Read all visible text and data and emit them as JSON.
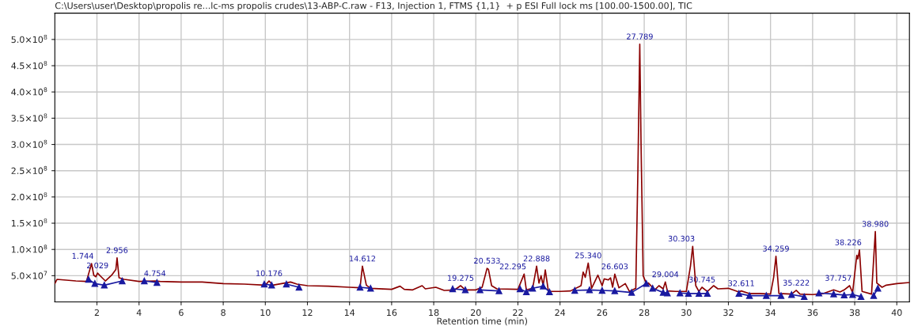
{
  "chart_data": {
    "type": "line",
    "title": "C:\\Users\\user\\Desktop\\propolis re...lc-ms propolis crudes\\13-ABP-C.raw - F13, Injection 1, FTMS {1,1}  + p ESI Full lock ms [100.00-1500.00], TIC",
    "xlabel": "Retention time (min)",
    "xlim": [
      0,
      40.6
    ],
    "xticks": [
      2,
      4,
      6,
      8,
      10,
      12,
      14,
      16,
      18,
      20,
      22,
      24,
      26,
      28,
      30,
      32,
      34,
      36,
      38,
      40
    ],
    "ylim": [
      0,
      550000000
    ],
    "yticks": [
      {
        "value": 50000000,
        "label": "5.0×10$^{7}$"
      },
      {
        "value": 100000000,
        "label": "1.0×10$^{8}$"
      },
      {
        "value": 150000000,
        "label": "1.5×10$^{8}$"
      },
      {
        "value": 200000000,
        "label": "2.0×10$^{8}$"
      },
      {
        "value": 250000000,
        "label": "2.5×10$^{8}$"
      },
      {
        "value": 300000000,
        "label": "3.0×10$^{8}$"
      },
      {
        "value": 350000000,
        "label": "3.5×10$^{8}$"
      },
      {
        "value": 400000000,
        "label": "4.0×10$^{8}$"
      },
      {
        "value": 450000000,
        "label": "4.5×10$^{8}$"
      },
      {
        "value": 500000000,
        "label": "5.0×10$^{8}$"
      }
    ],
    "grid": true,
    "series": [
      {
        "color": "#8b0000",
        "marker": "none",
        "x": [
          0.0,
          0.1,
          1.0,
          1.5,
          1.744,
          1.85,
          1.95,
          2.029,
          2.2,
          2.4,
          2.7,
          2.9,
          2.956,
          3.05,
          3.3,
          4,
          4.754,
          5,
          6,
          7,
          8,
          9,
          10,
          10.176,
          10.35,
          11.2,
          11.5,
          12,
          13,
          14,
          14.5,
          14.612,
          14.8,
          15,
          16,
          16.4,
          16.6,
          17,
          17.45,
          17.6,
          18.1,
          18.5,
          19,
          19.275,
          19.5,
          20,
          20.3,
          20.533,
          20.6,
          20.75,
          21,
          22,
          22.295,
          22.4,
          22.7,
          22.888,
          23.0,
          23.1,
          23.2,
          23.3,
          23.45,
          24,
          24.5,
          25.0,
          25.1,
          25.2,
          25.34,
          25.5,
          25.8,
          26.0,
          26.1,
          26.3,
          26.4,
          26.5,
          26.603,
          26.8,
          27.1,
          27.3,
          27.6,
          27.7,
          27.789,
          27.85,
          27.95,
          28.1,
          28.2,
          28.5,
          28.7,
          28.9,
          29.004,
          29.1,
          29.5,
          30.0,
          30.2,
          30.303,
          30.45,
          30.6,
          30.745,
          31.0,
          31.3,
          31.5,
          32,
          32.5,
          32.611,
          33,
          33.5,
          34.0,
          34.15,
          34.259,
          34.4,
          35.0,
          35.222,
          35.4,
          36,
          36.5,
          37.0,
          37.3,
          37.5,
          37.757,
          37.9,
          38.1,
          38.15,
          38.226,
          38.35,
          38.8,
          38.98,
          39.05,
          39.3,
          39.5,
          40,
          40.6
        ],
        "values": [
          35000000,
          43000000,
          40000000,
          39000000,
          73000000,
          51000000,
          48000000,
          55000000,
          48000000,
          40000000,
          51000000,
          62000000,
          84000000,
          46000000,
          43000000,
          39000000,
          40000000,
          39000000,
          38000000,
          38000000,
          35000000,
          34000000,
          32000000,
          40000000,
          32000000,
          38000000,
          34000000,
          31000000,
          30000000,
          28000000,
          27000000,
          68000000,
          32000000,
          26000000,
          24000000,
          30000000,
          24000000,
          23000000,
          31000000,
          25000000,
          28000000,
          22000000,
          23000000,
          31000000,
          23000000,
          23000000,
          28000000,
          64000000,
          62000000,
          31000000,
          25000000,
          24000000,
          53000000,
          23000000,
          26000000,
          68000000,
          36000000,
          50000000,
          31000000,
          61000000,
          20000000,
          20000000,
          21000000,
          31000000,
          57000000,
          47000000,
          74000000,
          26000000,
          51000000,
          31000000,
          44000000,
          42000000,
          46000000,
          28000000,
          53000000,
          27000000,
          35000000,
          20000000,
          26000000,
          250000000,
          491000000,
          300000000,
          50000000,
          35000000,
          36000000,
          23000000,
          31000000,
          25000000,
          38000000,
          21000000,
          20000000,
          20000000,
          69000000,
          106000000,
          31000000,
          20000000,
          28000000,
          20000000,
          31000000,
          25000000,
          26000000,
          19000000,
          21000000,
          16000000,
          16000000,
          15000000,
          47000000,
          87000000,
          16000000,
          15000000,
          22000000,
          15000000,
          14000000,
          16000000,
          23000000,
          19000000,
          23000000,
          31000000,
          18000000,
          89000000,
          82000000,
          99000000,
          20000000,
          15000000,
          134000000,
          36000000,
          28000000,
          32000000,
          35000000,
          37000000
        ]
      },
      {
        "color": "#1a1aa0",
        "marker": "triangle",
        "x": [
          1.6,
          1.9,
          2.35,
          3.2,
          3.7,
          4.25,
          4.85,
          7,
          9.95,
          10.3,
          10.6,
          11.0,
          11.6,
          13,
          14.5,
          15.0,
          17,
          18.9,
          19.5,
          19.8,
          20.2,
          21.1,
          21.6,
          22.1,
          22.4,
          22.7,
          23.2,
          23.5,
          24.1,
          24.7,
          25.4,
          26.0,
          26.6,
          27.4,
          28.1,
          28.25,
          28.4,
          28.9,
          29.1,
          29.4,
          29.7,
          30.1,
          30.6,
          31.0,
          31.8,
          32.5,
          33.0,
          33.8,
          34.5,
          34.7,
          35.0,
          35.6,
          36.0,
          36.3,
          37.0,
          37.5,
          37.9,
          38.3,
          38.6,
          38.9,
          39.1
        ],
        "values": [
          43000000,
          35000000,
          32000000,
          40000000,
          null,
          40000000,
          37000000,
          null,
          34000000,
          32000000,
          null,
          34000000,
          28000000,
          null,
          28000000,
          26000000,
          null,
          25000000,
          23000000,
          null,
          23000000,
          21000000,
          null,
          25000000,
          19000000,
          26000000,
          30000000,
          19000000,
          null,
          22000000,
          23000000,
          22000000,
          21000000,
          18000000,
          35000000,
          null,
          26000000,
          18000000,
          17000000,
          null,
          17000000,
          16000000,
          16000000,
          16000000,
          null,
          16000000,
          12000000,
          12000000,
          12000000,
          null,
          14000000,
          10000000,
          null,
          17000000,
          15000000,
          13000000,
          14000000,
          10000000,
          null,
          12000000,
          26000000
        ]
      }
    ],
    "annotations": [
      {
        "text": "1.744",
        "x": 1.744,
        "y": 73000000
      },
      {
        "text": "2.029",
        "x": 2.029,
        "y": 55000000
      },
      {
        "text": "2.956",
        "x": 2.956,
        "y": 84000000
      },
      {
        "text": "4.754",
        "x": 4.754,
        "y": 40000000
      },
      {
        "text": "10.176",
        "x": 10.176,
        "y": 40000000
      },
      {
        "text": "14.612",
        "x": 14.612,
        "y": 68000000
      },
      {
        "text": "19.275",
        "x": 19.275,
        "y": 31000000
      },
      {
        "text": "20.533",
        "x": 20.533,
        "y": 64000000
      },
      {
        "text": "22.295",
        "x": 22.295,
        "y": 53000000
      },
      {
        "text": "22.888",
        "x": 22.888,
        "y": 68000000
      },
      {
        "text": "25.340",
        "x": 25.34,
        "y": 74000000
      },
      {
        "text": "26.603",
        "x": 26.603,
        "y": 53000000
      },
      {
        "text": "27.789",
        "x": 27.789,
        "y": 491000000
      },
      {
        "text": "29.004",
        "x": 29.004,
        "y": 38000000
      },
      {
        "text": "30.303",
        "x": 30.303,
        "y": 106000000
      },
      {
        "text": "30.745",
        "x": 30.745,
        "y": 28000000
      },
      {
        "text": "32.611",
        "x": 32.611,
        "y": 21000000
      },
      {
        "text": "34.259",
        "x": 34.259,
        "y": 87000000
      },
      {
        "text": "35.222",
        "x": 35.222,
        "y": 22000000
      },
      {
        "text": "37.757",
        "x": 37.757,
        "y": 31000000
      },
      {
        "text": "38.226",
        "x": 38.226,
        "y": 99000000
      },
      {
        "text": "38.980",
        "x": 38.98,
        "y": 134000000
      }
    ]
  }
}
